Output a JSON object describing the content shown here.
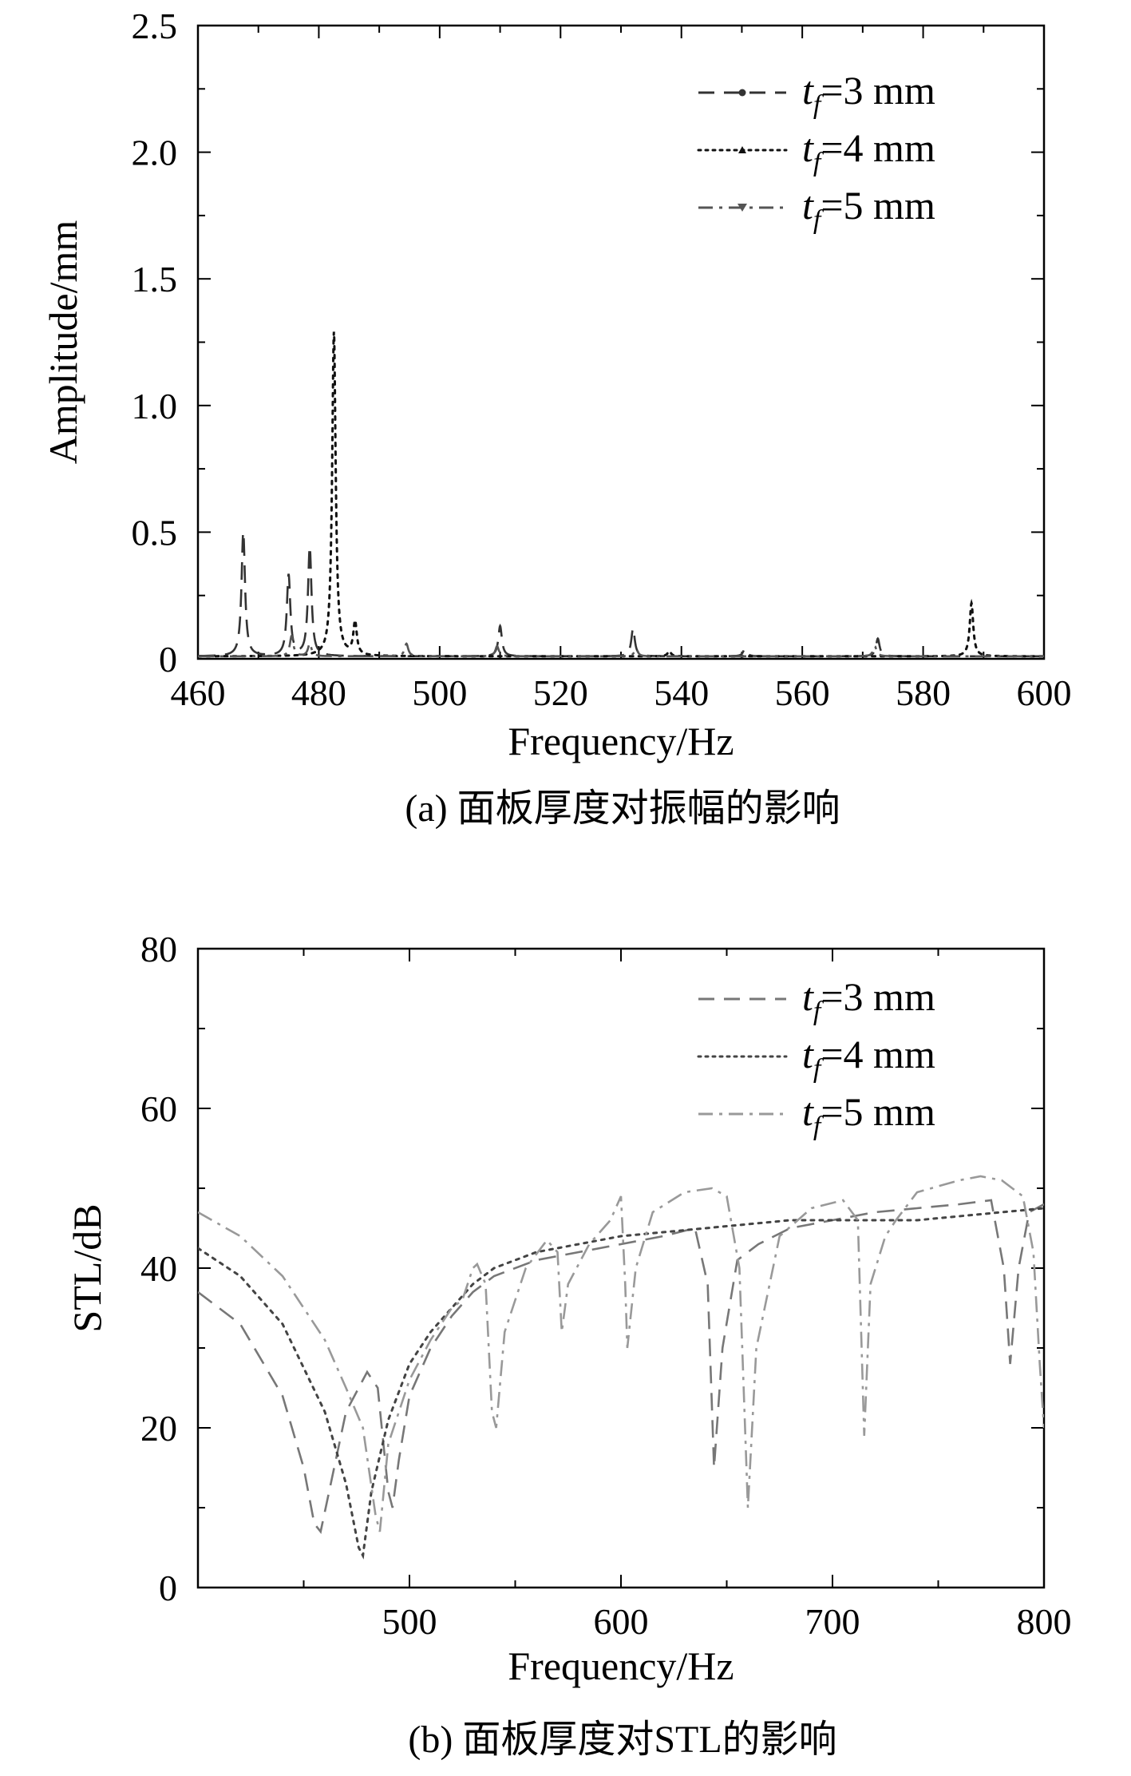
{
  "chart_data": [
    {
      "type": "line",
      "caption": "(a) 面板厚度对振幅的影响",
      "xlabel": "Frequency/Hz",
      "ylabel": "Amplitude/mm",
      "xlim": [
        460,
        600
      ],
      "ylim": [
        0,
        2.5
      ],
      "xticks": [
        460,
        480,
        500,
        520,
        540,
        560,
        580,
        600
      ],
      "yticks": [
        0,
        0.5,
        1.0,
        1.5,
        2.0,
        2.5
      ],
      "ytick_labels": [
        "0",
        "0.5",
        "1.0",
        "1.5",
        "2.0",
        "2.5"
      ],
      "grid": false,
      "legend_position": "top-right",
      "series": [
        {
          "name": "t_f=3 mm",
          "label_pre": "t",
          "label_sub": "f",
          "label_post": "=3 mm",
          "style": "dashed",
          "color": "#333333",
          "peaks": [
            [
              467.5,
              0.49
            ],
            [
              475,
              0.32
            ],
            [
              478.5,
              0.43
            ],
            [
              510,
              0.12
            ],
            [
              532,
              0.11
            ],
            [
              550.5,
              0.03
            ],
            [
              572.5,
              0.07
            ]
          ]
        },
        {
          "name": "t_f=4 mm",
          "label_pre": "t",
          "label_sub": "f",
          "label_post": "=4 mm",
          "style": "dotted",
          "color": "#111111",
          "peaks": [
            [
              482.5,
              1.28
            ],
            [
              486,
              0.13
            ],
            [
              538,
              0.02
            ],
            [
              588,
              0.21
            ]
          ]
        },
        {
          "name": "t_f=5 mm",
          "label_pre": "t",
          "label_sub": "f",
          "label_post": "=5 mm",
          "style": "dashdot",
          "color": "#555555",
          "peaks": [
            [
              475.5,
              0.08
            ],
            [
              478.5,
              0.05
            ],
            [
              494.5,
              0.05
            ],
            [
              509.5,
              0.04
            ],
            [
              532.5,
              0.03
            ],
            [
              572,
              0.04
            ]
          ]
        }
      ]
    },
    {
      "type": "line",
      "caption": "(b) 面板厚度对STL的影响",
      "xlabel": "Frequency/Hz",
      "ylabel": "STL/dB",
      "xlim": [
        400,
        800
      ],
      "ylim": [
        0,
        80
      ],
      "xticks": [
        500,
        600,
        700,
        800
      ],
      "yticks": [
        0,
        20,
        40,
        60,
        80
      ],
      "grid": false,
      "legend_position": "top-right",
      "series": [
        {
          "name": "t_f=3 mm",
          "label_pre": "t",
          "label_sub": "f",
          "label_post": "=3 mm",
          "style": "dashed",
          "color": "#777777",
          "points": [
            [
              400,
              37
            ],
            [
              420,
              33
            ],
            [
              440,
              24
            ],
            [
              450,
              15
            ],
            [
              455,
              8
            ],
            [
              458,
              7
            ],
            [
              462,
              12
            ],
            [
              470,
              22
            ],
            [
              480,
              27
            ],
            [
              485,
              25
            ],
            [
              490,
              12
            ],
            [
              492,
              10
            ],
            [
              495,
              16
            ],
            [
              500,
              24
            ],
            [
              510,
              30
            ],
            [
              520,
              34
            ],
            [
              530,
              37
            ],
            [
              540,
              39
            ],
            [
              560,
              41
            ],
            [
              580,
              42
            ],
            [
              600,
              43
            ],
            [
              620,
              44
            ],
            [
              635,
              45
            ],
            [
              641,
              38
            ],
            [
              644,
              15
            ],
            [
              648,
              30
            ],
            [
              655,
              41
            ],
            [
              665,
              43
            ],
            [
              680,
              45
            ],
            [
              700,
              46
            ],
            [
              720,
              47
            ],
            [
              740,
              47.5
            ],
            [
              760,
              48
            ],
            [
              775,
              48.5
            ],
            [
              781,
              40
            ],
            [
              784,
              28
            ],
            [
              788,
              40
            ],
            [
              793,
              47
            ],
            [
              800,
              48
            ]
          ]
        },
        {
          "name": "t_f=4 mm",
          "label_pre": "t",
          "label_sub": "f",
          "label_post": "=4 mm",
          "style": "dotted",
          "color": "#444444",
          "points": [
            [
              400,
              42.5
            ],
            [
              420,
              39
            ],
            [
              440,
              33
            ],
            [
              460,
              22
            ],
            [
              470,
              13
            ],
            [
              476,
              5
            ],
            [
              478,
              4
            ],
            [
              482,
              12
            ],
            [
              490,
              21
            ],
            [
              500,
              28
            ],
            [
              510,
              32
            ],
            [
              520,
              35
            ],
            [
              530,
              38
            ],
            [
              540,
              40
            ],
            [
              560,
              42
            ],
            [
              580,
              43
            ],
            [
              600,
              44
            ],
            [
              620,
              44.5
            ],
            [
              640,
              45
            ],
            [
              660,
              45.5
            ],
            [
              680,
              46
            ],
            [
              700,
              46
            ],
            [
              720,
              46
            ],
            [
              740,
              46
            ],
            [
              760,
              46.5
            ],
            [
              780,
              47
            ],
            [
              800,
              47.5
            ]
          ]
        },
        {
          "name": "t_f=5 mm",
          "label_pre": "t",
          "label_sub": "f",
          "label_post": "=5 mm",
          "style": "dashdot",
          "color": "#999999",
          "points": [
            [
              400,
              47
            ],
            [
              420,
              44
            ],
            [
              440,
              39
            ],
            [
              460,
              31
            ],
            [
              470,
              25
            ],
            [
              478,
              20
            ],
            [
              484,
              9
            ],
            [
              486,
              7
            ],
            [
              490,
              18
            ],
            [
              500,
              26
            ],
            [
              510,
              31
            ],
            [
              520,
              35
            ],
            [
              525,
              36
            ],
            [
              530,
              40
            ],
            [
              532,
              40.5
            ],
            [
              536,
              38
            ],
            [
              539,
              22
            ],
            [
              541,
              20
            ],
            [
              545,
              32
            ],
            [
              555,
              40
            ],
            [
              565,
              43.5
            ],
            [
              570,
              42
            ],
            [
              572,
              32
            ],
            [
              575,
              38
            ],
            [
              585,
              43
            ],
            [
              595,
              46
            ],
            [
              600,
              49
            ],
            [
              602,
              38
            ],
            [
              603,
              30
            ],
            [
              607,
              40
            ],
            [
              615,
              47
            ],
            [
              630,
              49.5
            ],
            [
              643,
              50
            ],
            [
              650,
              49
            ],
            [
              656,
              40
            ],
            [
              660,
              10
            ],
            [
              664,
              30
            ],
            [
              675,
              44
            ],
            [
              690,
              47.5
            ],
            [
              705,
              48.5
            ],
            [
              712,
              46
            ],
            [
              715,
              19
            ],
            [
              718,
              38
            ],
            [
              725,
              44
            ],
            [
              730,
              46
            ],
            [
              740,
              49.5
            ],
            [
              760,
              51
            ],
            [
              770,
              51.5
            ],
            [
              780,
              51
            ],
            [
              790,
              49
            ],
            [
              795,
              42
            ],
            [
              798,
              28
            ],
            [
              800,
              20
            ]
          ]
        }
      ]
    }
  ]
}
